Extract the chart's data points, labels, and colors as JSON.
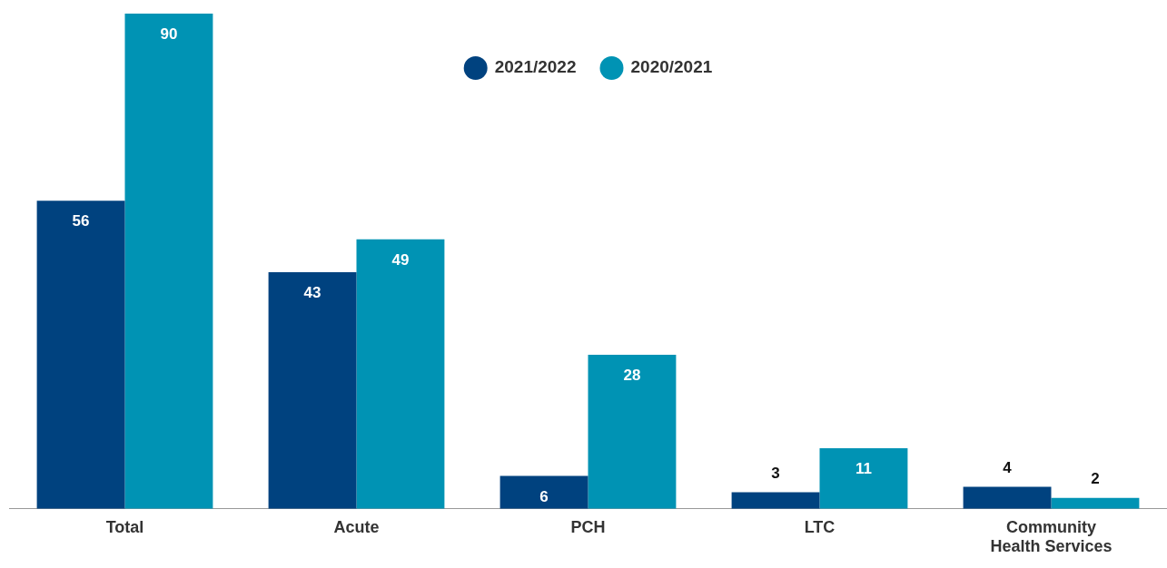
{
  "chart_data": {
    "type": "bar",
    "categories": [
      "Total",
      "Acute",
      "PCH",
      "LTC",
      "Community Health Services"
    ],
    "series": [
      {
        "name": "2021/2022",
        "color": "#00427f",
        "values": [
          56,
          43,
          6,
          3,
          4
        ]
      },
      {
        "name": "2020/2021",
        "color": "#0093b4",
        "values": [
          90,
          49,
          28,
          11,
          2
        ]
      }
    ],
    "data_labels": true,
    "legend": "top",
    "grid": false
  }
}
